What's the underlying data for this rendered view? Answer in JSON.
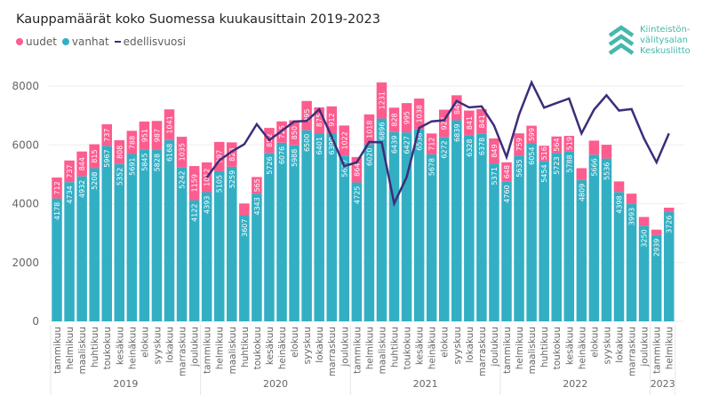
{
  "header": {
    "title": "Kauppamäärät koko Suomessa kuukausittain 2019-2023"
  },
  "logo": {
    "lines": [
      "Kiinteistön-",
      "välitysalan",
      "Keskusliitto"
    ],
    "color": "#45b8ac"
  },
  "colors": {
    "uudet": "#fd5c8f",
    "vanhat": "#33afc4",
    "edellisvuosi": "#3d2d7a",
    "grid": "#eeeeee"
  },
  "chart_data": {
    "type": "bar",
    "stacked": true,
    "title": "Kauppamäärät koko Suomessa kuukausittain 2019-2023",
    "xlabel": "",
    "ylabel": "",
    "ylim": [
      0,
      8000
    ],
    "yticks": [
      0,
      2000,
      4000,
      6000,
      8000
    ],
    "grid": true,
    "legend_position": "top-left",
    "legend": [
      "uudet",
      "vanhat",
      "edellisvuosi"
    ],
    "years": [
      {
        "label": "2019",
        "count": 12
      },
      {
        "label": "2020",
        "count": 12
      },
      {
        "label": "2021",
        "count": 12
      },
      {
        "label": "2022",
        "count": 12
      },
      {
        "label": "2023",
        "count": 2
      }
    ],
    "categories": [
      "tammikuu",
      "helmikuu",
      "maaliskuu",
      "huhtikuu",
      "toukokuu",
      "kesäkuu",
      "heinäkuu",
      "elokuu",
      "syyskuu",
      "lokakuu",
      "marraskuu",
      "joulukuu",
      "tammikuu",
      "helmikuu",
      "maaliskuu",
      "huhtikuu",
      "toukokuu",
      "kesäkuu",
      "heinäkuu",
      "elokuu",
      "syyskuu",
      "lokakuu",
      "marraskuu",
      "joulukuu",
      "tammikuu",
      "helmikuu",
      "maaliskuu",
      "huhtikuu",
      "toukokuu",
      "kesäkuu",
      "heinäkuu",
      "elokuu",
      "syyskuu",
      "lokakuu",
      "marraskuu",
      "joulukuu",
      "tammikuu",
      "helmikuu",
      "maaliskuu",
      "huhtikuu",
      "toukokuu",
      "kesäkuu",
      "heinäkuu",
      "elokuu",
      "syyskuu",
      "lokakuu",
      "marraskuu",
      "joulukuu",
      "tammikuu",
      "helmikuu"
    ],
    "series": [
      {
        "name": "vanhat",
        "values": [
          4178,
          4734,
          4932,
          5208,
          5967,
          5352,
          5691,
          5845,
          5828,
          6168,
          5242,
          4122,
          4393,
          5105,
          5259,
          3607,
          4343,
          5726,
          6076,
          5988,
          6500,
          6401,
          6399,
          5637,
          4725,
          6020,
          6896,
          6439,
          6427,
          6538,
          5678,
          6272,
          6839,
          6328,
          6378,
          5371,
          4760,
          5635,
          6054,
          5454,
          5723,
          5788,
          4809,
          5666,
          5536,
          4398,
          3993,
          3250,
          2939,
          3726
        ],
        "labels_shown": true
      },
      {
        "name": "uudet",
        "values": [
          712,
          737,
          844,
          815,
          737,
          808,
          788,
          951,
          987,
          1041,
          1035,
          1159,
          1012,
          997,
          828,
          400,
          565,
          852,
          725,
          850,
          995,
          875,
          912,
          1022,
          864,
          1018,
          1231,
          828,
          995,
          1038,
          712,
          927,
          849,
          841,
          841,
          849,
          648,
          759,
          599,
          516,
          564,
          519,
          400,
          480,
          470,
          360,
          350,
          300,
          180,
          140
        ],
        "label_shown": [
          true,
          true,
          true,
          true,
          true,
          true,
          true,
          true,
          true,
          true,
          true,
          true,
          true,
          true,
          true,
          false,
          true,
          true,
          true,
          true,
          true,
          true,
          true,
          true,
          true,
          true,
          true,
          true,
          true,
          true,
          true,
          true,
          true,
          true,
          true,
          true,
          true,
          true,
          true,
          true,
          true,
          true,
          false,
          false,
          false,
          false,
          false,
          false,
          false,
          false
        ]
      },
      {
        "name": "edellisvuosi",
        "type": "line",
        "values": [
          null,
          null,
          null,
          null,
          null,
          null,
          null,
          null,
          null,
          null,
          null,
          null,
          4890,
          5471,
          5776,
          6023,
          6704,
          6160,
          6479,
          6796,
          6815,
          7209,
          6277,
          5281,
          5405,
          6102,
          6087,
          4007,
          4908,
          6578,
          6801,
          6838,
          7495,
          7276,
          7311,
          6659,
          5589,
          7038,
          8127,
          7267,
          7422,
          7576,
          6390,
          7199,
          7688,
          7169,
          7219,
          6220,
          5408,
          6394
        ]
      }
    ]
  }
}
